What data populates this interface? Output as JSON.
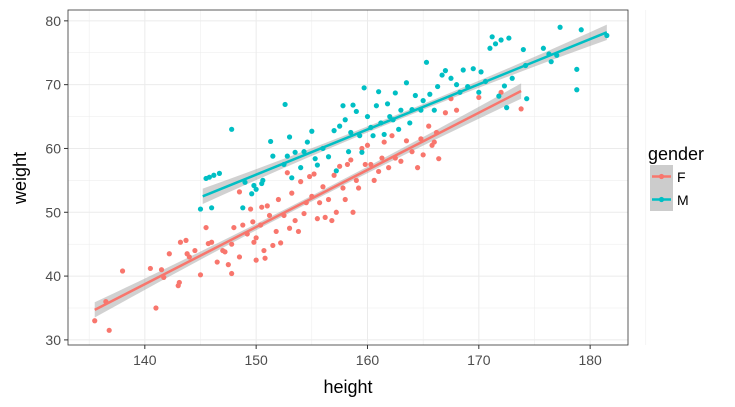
{
  "chart_data": {
    "type": "scatter",
    "xlabel": "height",
    "ylabel": "weight",
    "xlim": [
      133.1,
      183.4
    ],
    "ylim": [
      29.2,
      81.7
    ],
    "xticks": [
      140,
      150,
      160,
      170,
      180
    ],
    "yticks": [
      30,
      40,
      50,
      60,
      70,
      80
    ],
    "grid": true,
    "legend": {
      "title": "gender",
      "placement": "right"
    },
    "series": [
      {
        "name": "F",
        "color": "#F8766D",
        "fit": {
          "x": [
            135.5,
            173.8
          ],
          "y": [
            34.7,
            69.0
          ]
        },
        "points": [
          [
            135.5,
            33
          ],
          [
            136.5,
            36
          ],
          [
            136.8,
            31.5
          ],
          [
            138,
            40.8
          ],
          [
            140.5,
            41.2
          ],
          [
            141,
            35
          ],
          [
            141.5,
            41
          ],
          [
            141.7,
            39.8
          ],
          [
            142.2,
            43.5
          ],
          [
            143,
            38.5
          ],
          [
            143.1,
            39
          ],
          [
            143.2,
            45.3
          ],
          [
            143.7,
            45.6
          ],
          [
            143.8,
            43.5
          ],
          [
            144,
            43
          ],
          [
            144.5,
            44
          ],
          [
            145,
            40.2
          ],
          [
            145.5,
            47.6
          ],
          [
            145.7,
            45.1
          ],
          [
            146,
            45.3
          ],
          [
            146.5,
            42.2
          ],
          [
            147,
            44
          ],
          [
            147.2,
            43.8
          ],
          [
            147.5,
            41.8
          ],
          [
            147.8,
            45
          ],
          [
            147.8,
            40.4
          ],
          [
            148,
            47.6
          ],
          [
            148.5,
            43
          ],
          [
            148.5,
            53.2
          ],
          [
            148.8,
            48
          ],
          [
            149.2,
            46.6
          ],
          [
            149.5,
            50.5
          ],
          [
            149.7,
            48.5
          ],
          [
            149.8,
            45.3
          ],
          [
            150,
            46
          ],
          [
            150,
            42.5
          ],
          [
            150.4,
            48
          ],
          [
            150.5,
            50.8
          ],
          [
            150.7,
            44
          ],
          [
            150.8,
            42.8
          ],
          [
            151,
            51
          ],
          [
            151.2,
            49.5
          ],
          [
            151.5,
            44.8
          ],
          [
            151.8,
            47
          ],
          [
            152,
            52
          ],
          [
            152.2,
            45.2
          ],
          [
            152.5,
            49.5
          ],
          [
            152.8,
            56.2
          ],
          [
            153,
            47.5
          ],
          [
            153.2,
            53
          ],
          [
            153.5,
            48.7
          ],
          [
            153.8,
            47
          ],
          [
            154,
            54.8
          ],
          [
            154.3,
            49.8
          ],
          [
            154.5,
            51.5
          ],
          [
            154.8,
            55.6
          ],
          [
            155,
            52.5
          ],
          [
            155.2,
            56
          ],
          [
            155.5,
            49
          ],
          [
            155.7,
            51.5
          ],
          [
            156,
            54
          ],
          [
            156.2,
            49.2
          ],
          [
            156.5,
            52
          ],
          [
            156.8,
            48.7
          ],
          [
            157,
            55.8
          ],
          [
            157.2,
            50
          ],
          [
            157.5,
            57.2
          ],
          [
            157.8,
            53.8
          ],
          [
            158,
            52
          ],
          [
            158.2,
            57.5
          ],
          [
            158.5,
            58.2
          ],
          [
            158.7,
            50
          ],
          [
            159,
            55
          ],
          [
            159.2,
            53.8
          ],
          [
            159.5,
            60
          ],
          [
            159.8,
            57.5
          ],
          [
            160,
            60.5
          ],
          [
            160.3,
            57.5
          ],
          [
            160.6,
            55
          ],
          [
            161,
            56.4
          ],
          [
            161.3,
            58.5
          ],
          [
            161.5,
            61
          ],
          [
            161.9,
            57
          ],
          [
            162.2,
            62
          ],
          [
            162.5,
            58.5
          ],
          [
            163,
            58
          ],
          [
            163.5,
            61.2
          ],
          [
            164,
            59.5
          ],
          [
            164.5,
            57
          ],
          [
            164.8,
            61.5
          ],
          [
            165,
            59
          ],
          [
            165.5,
            63.5
          ],
          [
            165.8,
            60.5
          ],
          [
            166,
            61
          ],
          [
            166.2,
            62.5
          ],
          [
            166.4,
            58.4
          ],
          [
            167,
            65.6
          ],
          [
            167.5,
            67.8
          ],
          [
            168,
            66
          ],
          [
            170,
            68
          ],
          [
            172,
            68.8
          ],
          [
            173.8,
            66.2
          ]
        ]
      },
      {
        "name": "M",
        "color": "#00BFC4",
        "fit": {
          "x": [
            145.2,
            181.5
          ],
          "y": [
            52.5,
            78.2
          ]
        },
        "points": [
          [
            145,
            50.5
          ],
          [
            145.5,
            55.3
          ],
          [
            145.8,
            55.5
          ],
          [
            146,
            50.7
          ],
          [
            146.2,
            55.8
          ],
          [
            146.7,
            56.1
          ],
          [
            147.8,
            63
          ],
          [
            148.8,
            50.7
          ],
          [
            149,
            54.7
          ],
          [
            149.6,
            52.9
          ],
          [
            149.8,
            54.2
          ],
          [
            150,
            53.6
          ],
          [
            150.5,
            54.5
          ],
          [
            150.6,
            55
          ],
          [
            151.3,
            61.1
          ],
          [
            151.5,
            58.8
          ],
          [
            152.5,
            57.5
          ],
          [
            152.6,
            66.9
          ],
          [
            152.8,
            58.8
          ],
          [
            153,
            61.8
          ],
          [
            153.2,
            55.4
          ],
          [
            153.5,
            59.4
          ],
          [
            154,
            57
          ],
          [
            154.3,
            59.5
          ],
          [
            154.6,
            61
          ],
          [
            155,
            62.7
          ],
          [
            155.3,
            58.4
          ],
          [
            155.5,
            57.4
          ],
          [
            156,
            60
          ],
          [
            156.5,
            58.7
          ],
          [
            157,
            62.8
          ],
          [
            157.2,
            56.5
          ],
          [
            157.5,
            63.5
          ],
          [
            157.8,
            66.7
          ],
          [
            158,
            64.5
          ],
          [
            158.3,
            59.5
          ],
          [
            158.5,
            62.5
          ],
          [
            158.7,
            66.8
          ],
          [
            159,
            65.8
          ],
          [
            159.3,
            62
          ],
          [
            159.5,
            59.4
          ],
          [
            159.7,
            69.5
          ],
          [
            160,
            65
          ],
          [
            160.3,
            63.3
          ],
          [
            160.5,
            62
          ],
          [
            160.8,
            66.7
          ],
          [
            161,
            68.9
          ],
          [
            161.2,
            64
          ],
          [
            161.5,
            62.2
          ],
          [
            161.8,
            67
          ],
          [
            162,
            65
          ],
          [
            162.3,
            64.5
          ],
          [
            162.5,
            68.7
          ],
          [
            162.8,
            63
          ],
          [
            163,
            66
          ],
          [
            163.5,
            70.3
          ],
          [
            163.8,
            64
          ],
          [
            164,
            66.1
          ],
          [
            164.3,
            68.3
          ],
          [
            164.8,
            66
          ],
          [
            165,
            67.5
          ],
          [
            165.3,
            73.5
          ],
          [
            165.6,
            68.5
          ],
          [
            166,
            66
          ],
          [
            166.3,
            69.7
          ],
          [
            166.7,
            71.5
          ],
          [
            167,
            72.2
          ],
          [
            167.5,
            71
          ],
          [
            168,
            70
          ],
          [
            168.3,
            68.8
          ],
          [
            168.6,
            72.3
          ],
          [
            169,
            69.7
          ],
          [
            169.5,
            72.5
          ],
          [
            170,
            68.8
          ],
          [
            170.2,
            72
          ],
          [
            170.6,
            70.5
          ],
          [
            171,
            75.7
          ],
          [
            171.2,
            77.5
          ],
          [
            171.5,
            76.4
          ],
          [
            171.8,
            68.2
          ],
          [
            172,
            77
          ],
          [
            172.3,
            69.8
          ],
          [
            172.5,
            66.4
          ],
          [
            172.7,
            77.3
          ],
          [
            173,
            71
          ],
          [
            174,
            75.5
          ],
          [
            174.2,
            73
          ],
          [
            174.3,
            67.8
          ],
          [
            175.8,
            75.7
          ],
          [
            176.3,
            74.8
          ],
          [
            176.5,
            73.6
          ],
          [
            177,
            74.6
          ],
          [
            177.3,
            79
          ],
          [
            178.8,
            72.4
          ],
          [
            178.8,
            69.2
          ],
          [
            179.2,
            78.6
          ],
          [
            181.5,
            77.7
          ]
        ]
      }
    ]
  }
}
